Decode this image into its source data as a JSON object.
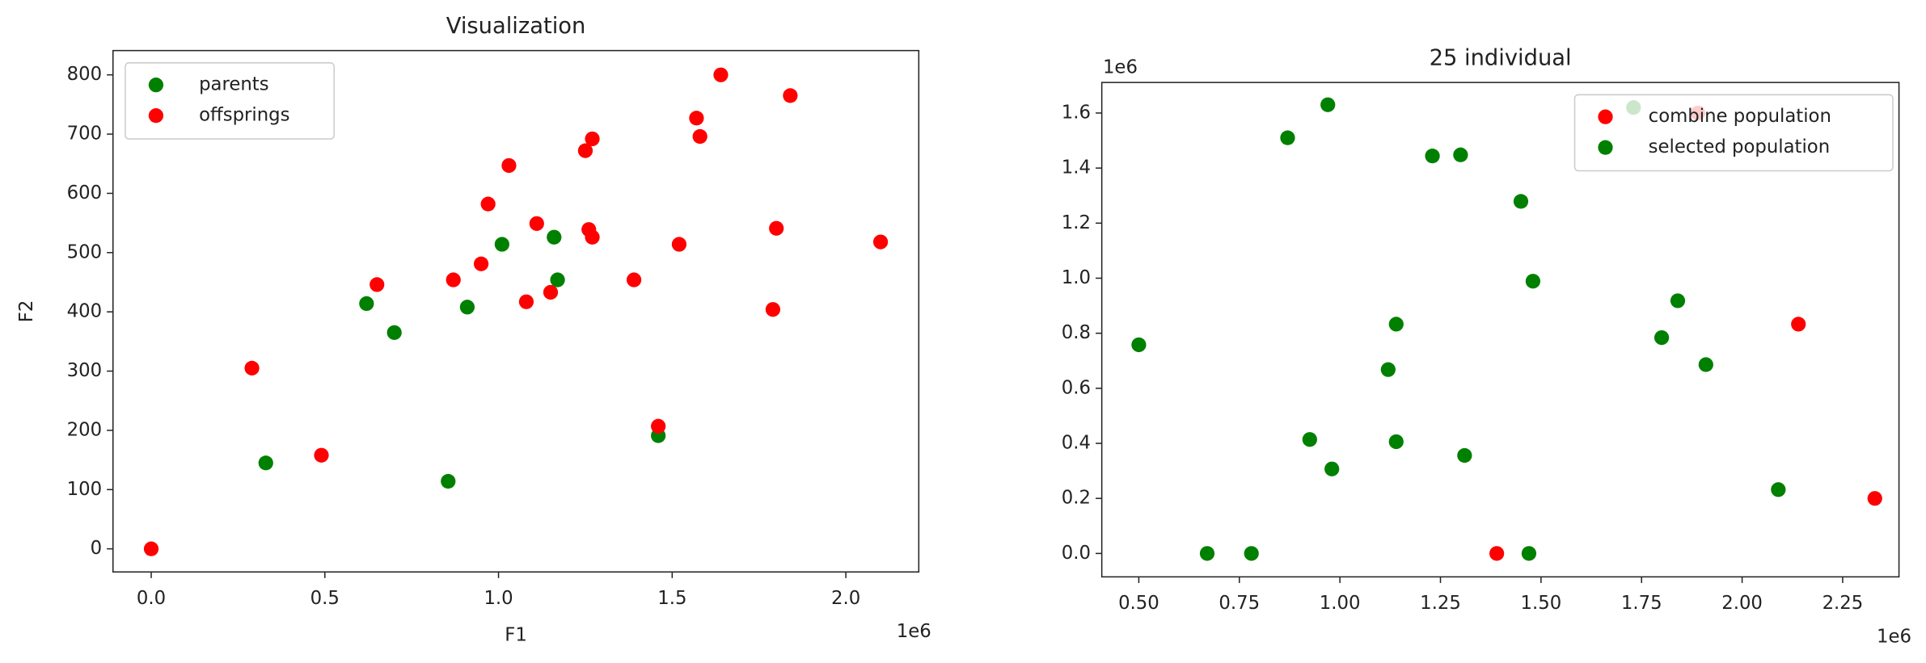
{
  "chart_data": [
    {
      "type": "scatter",
      "title": "Visualization",
      "x_label": "F1",
      "y_label": "F2",
      "x_offset": "1e6",
      "xlim": [
        -0.11,
        2.21
      ],
      "ylim": [
        -39,
        841
      ],
      "xticks": [
        {
          "value": 0,
          "label": "0.0"
        },
        {
          "value": 0.5,
          "label": "0.5"
        },
        {
          "value": 1,
          "label": "1.0"
        },
        {
          "value": 1.5,
          "label": "1.5"
        },
        {
          "value": 2,
          "label": "2.0"
        }
      ],
      "yticks": [
        0,
        100,
        200,
        300,
        400,
        500,
        600,
        700,
        800
      ],
      "legend": "upper left",
      "series": [
        {
          "name": "parents",
          "color": "#008000",
          "x": [
            0.33,
            0.62,
            0.7,
            0.855,
            0.91,
            1.01,
            1.16,
            1.17,
            1.46
          ],
          "values": [
            145,
            414,
            365,
            114,
            408,
            514,
            526,
            454,
            191
          ]
        },
        {
          "name": "offsprings",
          "color": "#ff0000",
          "x": [
            0,
            0.29,
            0.49,
            0.65,
            0.87,
            0.95,
            0.97,
            1.03,
            1.08,
            1.11,
            1.15,
            1.25,
            1.27,
            1.26,
            1.27,
            1.39,
            1.46,
            1.52,
            1.57,
            1.58,
            1.64,
            1.79,
            1.8,
            1.84,
            2.1
          ],
          "values": [
            0,
            305,
            158,
            446,
            454,
            481,
            582,
            647,
            417,
            549,
            433,
            672,
            692,
            539,
            526,
            454,
            207,
            514,
            727,
            696,
            800,
            404,
            541,
            765,
            518
          ]
        }
      ]
    },
    {
      "type": "scatter",
      "title": "25 individual",
      "x_offset": "1e6",
      "y_offset": "1e6",
      "xlim": [
        0.408,
        2.39
      ],
      "ylim": [
        -0.085,
        1.711
      ],
      "xticks": [
        {
          "value": 0.5,
          "label": "0.50"
        },
        {
          "value": 0.75,
          "label": "0.75"
        },
        {
          "value": 1,
          "label": "1.00"
        },
        {
          "value": 1.25,
          "label": "1.25"
        },
        {
          "value": 1.5,
          "label": "1.50"
        },
        {
          "value": 1.75,
          "label": "1.75"
        },
        {
          "value": 2,
          "label": "2.00"
        },
        {
          "value": 2.25,
          "label": "2.25"
        }
      ],
      "yticks": [
        {
          "value": 0,
          "label": "0.0"
        },
        {
          "value": 0.2,
          "label": "0.2"
        },
        {
          "value": 0.4,
          "label": "0.4"
        },
        {
          "value": 0.6,
          "label": "0.6"
        },
        {
          "value": 0.8,
          "label": "0.8"
        },
        {
          "value": 1,
          "label": "1.0"
        },
        {
          "value": 1.2,
          "label": "1.2"
        },
        {
          "value": 1.4,
          "label": "1.4"
        },
        {
          "value": 1.6,
          "label": "1.6"
        }
      ],
      "legend": "upper right",
      "series": [
        {
          "name": "combine population",
          "color": "#ff0000",
          "x": [
            1.39,
            2.14,
            2.33,
            1.89
          ],
          "values": [
            0,
            0.833,
            0.2,
            1.6
          ]
        },
        {
          "name": "selected population",
          "color": "#008000",
          "x": [
            0.5,
            0.67,
            0.78,
            0.87,
            0.925,
            0.97,
            0.98,
            1.12,
            1.14,
            1.14,
            1.23,
            1.3,
            1.31,
            1.45,
            1.47,
            1.48,
            1.8,
            1.84,
            1.91,
            2.09,
            1.73
          ],
          "values": [
            0.758,
            0,
            0,
            1.51,
            0.414,
            1.63,
            0.307,
            0.668,
            0.833,
            0.406,
            1.444,
            1.448,
            0.356,
            1.279,
            0,
            0.989,
            0.784,
            0.918,
            0.686,
            0.232,
            1.62
          ]
        }
      ]
    }
  ]
}
